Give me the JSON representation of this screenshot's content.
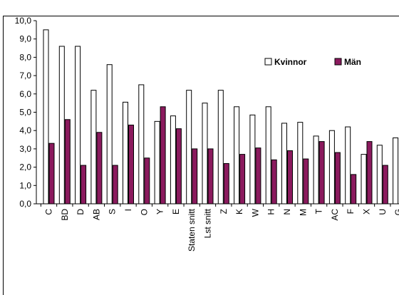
{
  "chart_data": {
    "type": "bar",
    "categories": [
      "C",
      "BD",
      "D",
      "AB",
      "S",
      "I",
      "O",
      "Y",
      "E",
      "Staten snitt",
      "Lst snitt",
      "Z",
      "K",
      "W",
      "H",
      "N",
      "M",
      "T",
      "AC",
      "F",
      "X",
      "U",
      "G"
    ],
    "series": [
      {
        "name": "Kvinnor",
        "color": "#ffffff",
        "values": [
          9.5,
          8.6,
          8.6,
          6.2,
          7.6,
          5.55,
          6.5,
          4.5,
          4.8,
          6.2,
          5.5,
          6.2,
          5.3,
          4.85,
          5.3,
          4.4,
          4.45,
          3.7,
          4.0,
          4.2,
          2.7,
          3.2,
          3.6
        ]
      },
      {
        "name": "Män",
        "color": "#8b1a5e",
        "values": [
          3.3,
          4.6,
          2.1,
          3.9,
          2.1,
          4.3,
          2.5,
          5.3,
          4.1,
          3.0,
          3.0,
          2.2,
          2.7,
          3.05,
          2.4,
          2.9,
          2.45,
          3.4,
          2.8,
          1.6,
          3.4,
          2.1,
          null
        ]
      }
    ],
    "yticks": [
      "0,0",
      "1,0",
      "2,0",
      "3,0",
      "4,0",
      "5,0",
      "6,0",
      "7,0",
      "8,0",
      "9,0",
      "10,0"
    ],
    "ylim": [
      0,
      10
    ],
    "legend_position": "top-right",
    "grid": false
  }
}
